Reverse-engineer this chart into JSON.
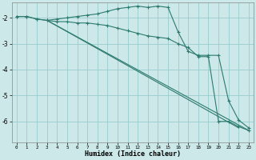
{
  "xlabel": "Humidex (Indice chaleur)",
  "bg_color": "#cce8e8",
  "plot_bg_color": "#cce8e8",
  "grid_color": "#99cccc",
  "line_color": "#2d7a6e",
  "xlim": [
    -0.5,
    23.5
  ],
  "ylim": [
    -6.8,
    -1.4
  ],
  "xticks": [
    0,
    1,
    2,
    3,
    4,
    5,
    6,
    7,
    8,
    9,
    10,
    11,
    12,
    13,
    14,
    15,
    16,
    17,
    18,
    19,
    20,
    21,
    22,
    23
  ],
  "yticks": [
    -6,
    -5,
    -4,
    -3,
    -2
  ],
  "series1_x": [
    0,
    1,
    2,
    3,
    4,
    5,
    6,
    7,
    8,
    9,
    10,
    11,
    12,
    13,
    14,
    15,
    16,
    17,
    18,
    19,
    20,
    21,
    22,
    23
  ],
  "series1_y": [
    -1.95,
    -1.95,
    -2.05,
    -2.1,
    -2.05,
    -2.0,
    -1.95,
    -1.9,
    -1.85,
    -1.75,
    -1.65,
    -1.6,
    -1.55,
    -1.6,
    -1.55,
    -1.6,
    -2.55,
    -3.3,
    -3.45,
    -3.45,
    -3.45,
    -5.2,
    -5.95,
    -6.25
  ],
  "series2_x": [
    0,
    1,
    2,
    3,
    4,
    5,
    6,
    7,
    8,
    9,
    10,
    11,
    12,
    13,
    14,
    15,
    16,
    17,
    18,
    19,
    20,
    21,
    22,
    23
  ],
  "series2_y": [
    -1.95,
    -1.95,
    -2.05,
    -2.1,
    -2.15,
    -2.15,
    -2.2,
    -2.2,
    -2.25,
    -2.3,
    -2.4,
    -2.5,
    -2.6,
    -2.7,
    -2.75,
    -2.8,
    -3.0,
    -3.15,
    -3.5,
    -3.5,
    -6.0,
    -6.0,
    -6.2,
    -6.35
  ],
  "line3_x": [
    3,
    23
  ],
  "line3_y": [
    -2.1,
    -6.35
  ],
  "line4_x": [
    3,
    22
  ],
  "line4_y": [
    -2.1,
    -6.25
  ]
}
